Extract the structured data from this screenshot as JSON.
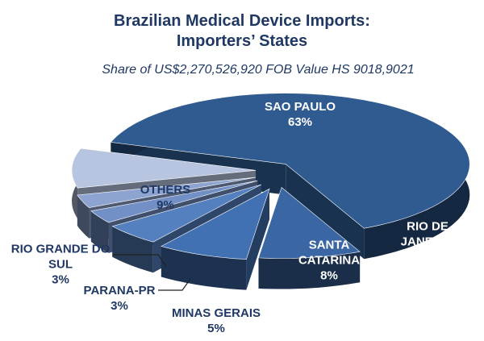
{
  "chart_data": {
    "type": "pie3d",
    "title": "Brazilian Medical Device Imports: Importers’ States",
    "subtitle": "Share of US$2,270,526,920 FOB Value HS 9018,9021",
    "categories": [
      "SAO PAULO",
      "RIO DE JANEIRO",
      "SANTA CATARINA",
      "MINAS GERAIS",
      "PARANA-PR",
      "RIO GRANDE DO SUL",
      "OTHERS"
    ],
    "values": [
      63,
      9,
      8,
      5,
      3,
      3,
      9
    ],
    "value_labels": [
      "63%",
      "9%",
      "8%",
      "5%",
      "3%",
      "3%",
      "9%"
    ],
    "colors": [
      "#2f5b91",
      "#3a66a3",
      "#4271b3",
      "#5580bf",
      "#7390c6",
      "#8ea4d0",
      "#b8c5e0"
    ]
  }
}
